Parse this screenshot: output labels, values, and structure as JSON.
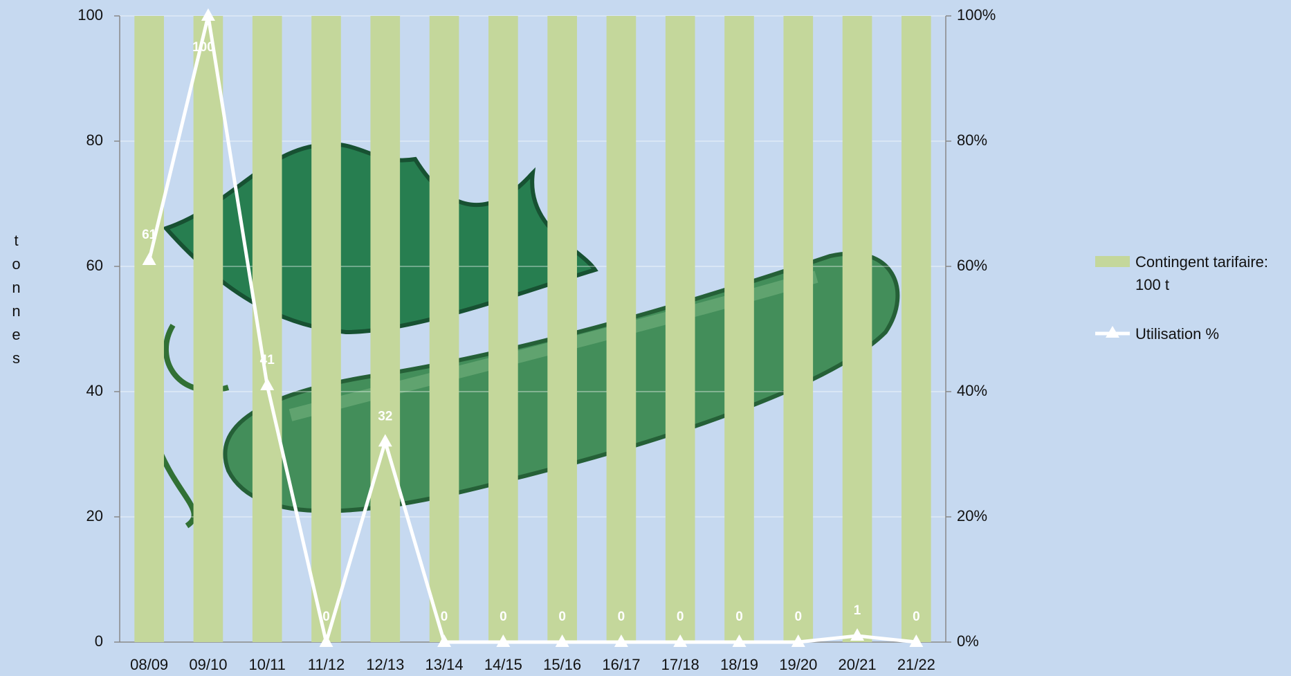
{
  "chart_data": {
    "type": "bar-line",
    "y_label": "tonnes",
    "categories": [
      "08/09",
      "09/10",
      "10/11",
      "11/12",
      "12/13",
      "13/14",
      "14/15",
      "15/16",
      "16/17",
      "17/18",
      "18/19",
      "19/20",
      "20/21",
      "21/22"
    ],
    "series": [
      {
        "name": "Contingent tarifaire: 100 t",
        "type": "bar",
        "color": "#c4d79b",
        "values": [
          100,
          100,
          100,
          100,
          100,
          100,
          100,
          100,
          100,
          100,
          100,
          100,
          100,
          100
        ]
      },
      {
        "name": "Utilisation %",
        "type": "line",
        "axis": "y2",
        "color": "#ffffff",
        "values": [
          61,
          100,
          41,
          0,
          32,
          0,
          0,
          0,
          0,
          0,
          0,
          0,
          1,
          0
        ]
      }
    ],
    "ylim": [
      0,
      100
    ],
    "yticks": [
      0,
      20,
      40,
      60,
      80,
      100
    ],
    "y2lim": [
      0,
      100
    ],
    "y2ticks": [
      {
        "value": 0,
        "label": "0%"
      },
      {
        "value": 20,
        "label": "20%"
      },
      {
        "value": 40,
        "label": "40%"
      },
      {
        "value": 60,
        "label": "60%"
      },
      {
        "value": 80,
        "label": "80%"
      },
      {
        "value": 100,
        "label": "100%"
      }
    ],
    "grid": true,
    "legend": "right"
  }
}
